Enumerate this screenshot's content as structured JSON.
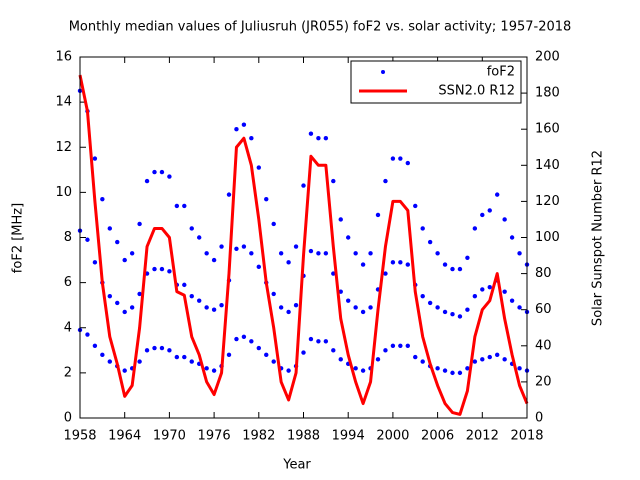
{
  "chart_data": {
    "type": "scatter-line",
    "title": "Monthly median values of Juliusruh (JR055) foF2 vs. solar activity; 1957-2018",
    "xlabel": "Year",
    "ylabel": "foF2 [MHz]",
    "y2label": "Solar Sunspot Number R12",
    "legend": "top-right",
    "xlim": [
      1958,
      2018
    ],
    "xticks": [
      1958,
      1964,
      1970,
      1976,
      1982,
      1988,
      1994,
      2000,
      2006,
      2012,
      2018
    ],
    "ylim": [
      0,
      16
    ],
    "yticks": [
      0,
      2,
      4,
      6,
      8,
      10,
      12,
      14,
      16
    ],
    "y2lim": [
      0,
      200
    ],
    "y2ticks": [
      0,
      20,
      40,
      60,
      80,
      100,
      120,
      140,
      160,
      180,
      200
    ],
    "x": [
      1958,
      1959,
      1960,
      1961,
      1962,
      1963,
      1964,
      1965,
      1966,
      1967,
      1968,
      1969,
      1970,
      1971,
      1972,
      1973,
      1974,
      1975,
      1976,
      1977,
      1978,
      1979,
      1980,
      1981,
      1982,
      1983,
      1984,
      1985,
      1986,
      1987,
      1988,
      1989,
      1990,
      1991,
      1992,
      1993,
      1994,
      1995,
      1996,
      1997,
      1998,
      1999,
      2000,
      2001,
      2002,
      2003,
      2004,
      2005,
      2006,
      2007,
      2008,
      2009,
      2010,
      2011,
      2012,
      2013,
      2014,
      2015,
      2016,
      2017,
      2018
    ],
    "series": [
      {
        "name": "foF2",
        "color": "#0000ff",
        "style": "points",
        "values": [
          [
            3.9,
            8.3,
            14.5
          ],
          [
            3.7,
            7.9,
            13.6
          ],
          [
            3.2,
            6.9,
            11.5
          ],
          [
            2.8,
            6.0,
            9.7
          ],
          [
            2.5,
            5.4,
            8.4
          ],
          [
            2.3,
            5.1,
            7.8
          ],
          [
            2.1,
            4.7,
            7.0
          ],
          [
            2.2,
            4.9,
            7.3
          ],
          [
            2.5,
            5.5,
            8.6
          ],
          [
            3.0,
            6.4,
            10.5
          ],
          [
            3.1,
            6.6,
            10.9
          ],
          [
            3.1,
            6.6,
            10.9
          ],
          [
            3.0,
            6.5,
            10.7
          ],
          [
            2.7,
            5.9,
            9.4
          ],
          [
            2.7,
            5.9,
            9.4
          ],
          [
            2.5,
            5.4,
            8.4
          ],
          [
            2.4,
            5.2,
            8.0
          ],
          [
            2.2,
            4.9,
            7.3
          ],
          [
            2.1,
            4.8,
            7.0
          ],
          [
            2.3,
            5.0,
            7.6
          ],
          [
            2.8,
            6.1,
            9.9
          ],
          [
            3.5,
            7.5,
            12.8
          ],
          [
            3.6,
            7.6,
            13.0
          ],
          [
            3.4,
            7.3,
            12.4
          ],
          [
            3.1,
            6.7,
            11.1
          ],
          [
            2.8,
            6.0,
            9.7
          ],
          [
            2.5,
            5.5,
            8.6
          ],
          [
            2.2,
            4.9,
            7.3
          ],
          [
            2.1,
            4.7,
            6.9
          ],
          [
            2.3,
            5.0,
            7.6
          ],
          [
            2.9,
            6.3,
            10.3
          ],
          [
            3.5,
            7.4,
            12.6
          ],
          [
            3.4,
            7.3,
            12.4
          ],
          [
            3.4,
            7.3,
            12.4
          ],
          [
            3.0,
            6.4,
            10.5
          ],
          [
            2.6,
            5.6,
            8.8
          ],
          [
            2.4,
            5.2,
            8.0
          ],
          [
            2.2,
            4.9,
            7.3
          ],
          [
            2.1,
            4.7,
            6.8
          ],
          [
            2.2,
            4.9,
            7.3
          ],
          [
            2.6,
            5.7,
            9.0
          ],
          [
            3.0,
            6.4,
            10.5
          ],
          [
            3.2,
            6.9,
            11.5
          ],
          [
            3.2,
            6.9,
            11.5
          ],
          [
            3.2,
            6.8,
            11.3
          ],
          [
            2.7,
            5.9,
            9.4
          ],
          [
            2.5,
            5.4,
            8.4
          ],
          [
            2.3,
            5.1,
            7.8
          ],
          [
            2.2,
            4.9,
            7.3
          ],
          [
            2.1,
            4.7,
            6.8
          ],
          [
            2.0,
            4.6,
            6.6
          ],
          [
            2.0,
            4.5,
            6.6
          ],
          [
            2.2,
            4.8,
            7.1
          ],
          [
            2.5,
            5.4,
            8.4
          ],
          [
            2.6,
            5.7,
            9.0
          ],
          [
            2.7,
            5.8,
            9.2
          ],
          [
            2.8,
            6.1,
            9.9
          ],
          [
            2.6,
            5.6,
            8.8
          ],
          [
            2.4,
            5.2,
            8.0
          ],
          [
            2.2,
            4.9,
            7.3
          ],
          [
            2.1,
            4.7,
            6.8
          ]
        ]
      },
      {
        "name": "SSN2.0 R12",
        "color": "#ff0000",
        "style": "line",
        "axis": "y2",
        "values": [
          190,
          170,
          120,
          75,
          45,
          30,
          12,
          18,
          50,
          95,
          105,
          105,
          100,
          70,
          68,
          45,
          35,
          20,
          13,
          25,
          80,
          150,
          155,
          140,
          110,
          75,
          50,
          20,
          10,
          25,
          90,
          145,
          140,
          140,
          95,
          55,
          35,
          20,
          8,
          20,
          60,
          95,
          120,
          120,
          115,
          70,
          45,
          30,
          18,
          8,
          3,
          2,
          15,
          45,
          60,
          65,
          80,
          55,
          35,
          18,
          8
        ]
      }
    ]
  }
}
